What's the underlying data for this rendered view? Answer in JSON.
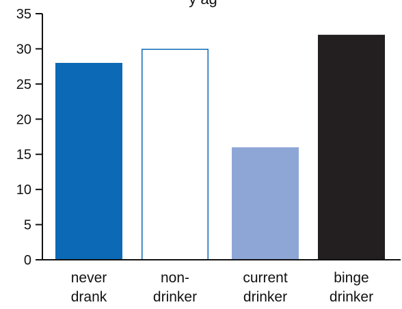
{
  "chart_data": {
    "type": "bar",
    "title": "",
    "title_fragment": "y ag",
    "xlabel": "",
    "ylabel": "",
    "ylim": [
      0,
      35
    ],
    "yticks": [
      0,
      5,
      10,
      15,
      20,
      25,
      30,
      35
    ],
    "grid": false,
    "categories": [
      {
        "line1": "never",
        "line2": "drank"
      },
      {
        "line1": "non-",
        "line2": "drinker"
      },
      {
        "line1": "current",
        "line2": "drinker"
      },
      {
        "line1": "binge",
        "line2": "drinker"
      }
    ],
    "values": [
      28,
      30,
      16,
      32
    ],
    "bar_styles": [
      {
        "fill": "#0b69b5",
        "stroke": "#0b69b5"
      },
      {
        "fill": "#ffffff",
        "stroke": "#0b69b5"
      },
      {
        "fill": "#8da6d6",
        "stroke": "#8da6d6"
      },
      {
        "fill": "#231f20",
        "stroke": "#231f20"
      }
    ],
    "axis_color": "#111111"
  }
}
